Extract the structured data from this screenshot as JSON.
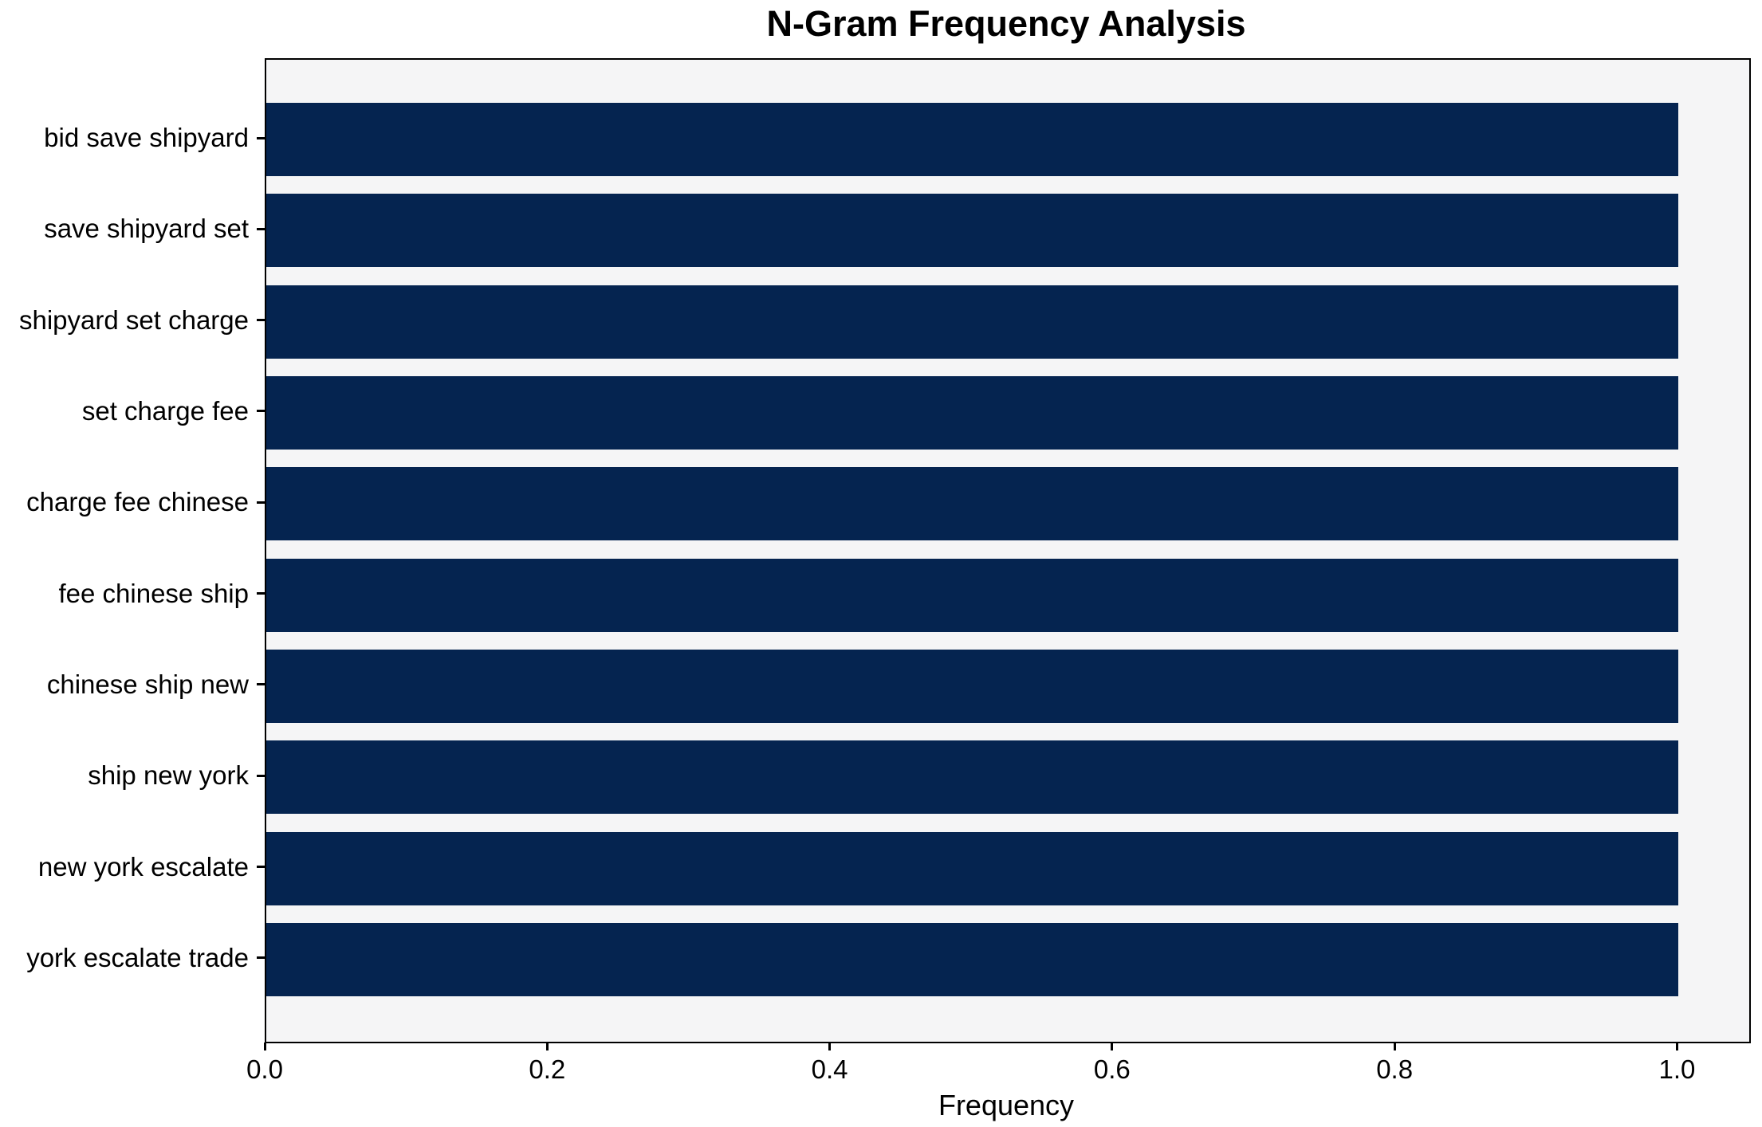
{
  "chart_data": {
    "type": "bar",
    "orientation": "horizontal",
    "title": "N-Gram Frequency Analysis",
    "xlabel": "Frequency",
    "ylabel": "",
    "categories": [
      "bid save shipyard",
      "save shipyard set",
      "shipyard set charge",
      "set charge fee",
      "charge fee chinese",
      "fee chinese ship",
      "chinese ship new",
      "ship new york",
      "new york escalate",
      "york escalate trade"
    ],
    "values": [
      1.0,
      1.0,
      1.0,
      1.0,
      1.0,
      1.0,
      1.0,
      1.0,
      1.0,
      1.0
    ],
    "xlim": [
      0,
      1.05
    ],
    "xticks": [
      0.0,
      0.2,
      0.4,
      0.6,
      0.8,
      1.0
    ],
    "xtick_labels": [
      "0.0",
      "0.2",
      "0.4",
      "0.6",
      "0.8",
      "1.0"
    ],
    "grid": false,
    "legend": null,
    "colors": {
      "bar": "#052450",
      "plot_background": "#f5f5f6",
      "figure_background": "#ffffff",
      "spine": "#000000",
      "text": "#000000"
    }
  }
}
